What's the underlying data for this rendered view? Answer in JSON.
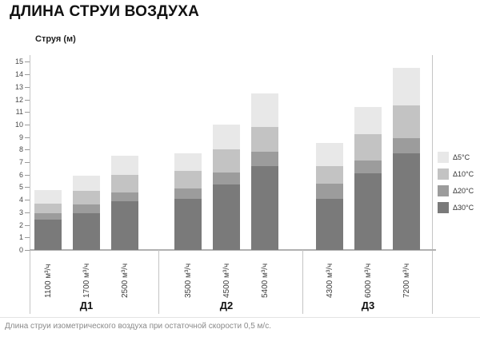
{
  "page": {
    "title": "ДЛИНА СТРУИ ВОЗДУХА",
    "footnote": "Длина струи изометрического воздуха при остаточной скорости 0,5 м/с."
  },
  "chart_data": {
    "type": "bar",
    "stacked": true,
    "title": "ДЛИНА СТРУИ ВОЗДУХА",
    "ylabel": "Струя (м)",
    "xlabel": "",
    "ylim": [
      0,
      15
    ],
    "ytick_step": 1,
    "yticks": [
      0,
      1,
      2,
      3,
      4,
      5,
      6,
      7,
      8,
      9,
      10,
      11,
      12,
      13,
      14,
      15
    ],
    "grid": false,
    "legend_position": "right",
    "note": "length_m values are cumulative jet length in meters for each temperature difference; stacks are drawn darkest (Δ30°C) at bottom",
    "legend": [
      {
        "name": "Δ5°C",
        "color": "#e8e8e8"
      },
      {
        "name": "Δ10°C",
        "color": "#c3c3c3"
      },
      {
        "name": "Δ20°C",
        "color": "#9c9c9c"
      },
      {
        "name": "Δ30°C",
        "color": "#7a7a7a"
      }
    ],
    "stack_order_bottom_to_top": [
      "Δ30°C",
      "Δ20°C",
      "Δ10°C",
      "Δ5°C"
    ],
    "groups": [
      {
        "label": "Д1",
        "bars": [
          {
            "category": "1100 м³/ч",
            "length_m": {
              "Δ30°C": 2.4,
              "Δ20°C": 2.9,
              "Δ10°C": 3.7,
              "Δ5°C": 4.8
            }
          },
          {
            "category": "1700 м³/ч",
            "length_m": {
              "Δ30°C": 2.9,
              "Δ20°C": 3.6,
              "Δ10°C": 4.7,
              "Δ5°C": 5.9
            }
          },
          {
            "category": "2500 м³/ч",
            "length_m": {
              "Δ30°C": 3.9,
              "Δ20°C": 4.6,
              "Δ10°C": 6.0,
              "Δ5°C": 7.5
            }
          }
        ]
      },
      {
        "label": "Д2",
        "bars": [
          {
            "category": "3500 м³/ч",
            "length_m": {
              "Δ30°C": 4.1,
              "Δ20°C": 4.9,
              "Δ10°C": 6.3,
              "Δ5°C": 7.7
            }
          },
          {
            "category": "4500 м³/ч",
            "length_m": {
              "Δ30°C": 5.2,
              "Δ20°C": 6.2,
              "Δ10°C": 8.0,
              "Δ5°C": 10.0
            }
          },
          {
            "category": "5400 м³/ч",
            "length_m": {
              "Δ30°C": 6.7,
              "Δ20°C": 7.8,
              "Δ10°C": 9.8,
              "Δ5°C": 12.5
            }
          }
        ]
      },
      {
        "label": "Д3",
        "bars": [
          {
            "category": "4300 м³/ч",
            "length_m": {
              "Δ30°C": 4.1,
              "Δ20°C": 5.3,
              "Δ10°C": 6.7,
              "Δ5°C": 8.5
            }
          },
          {
            "category": "6000 м³/ч",
            "length_m": {
              "Δ30°C": 6.1,
              "Δ20°C": 7.1,
              "Δ10°C": 9.2,
              "Δ5°C": 11.4
            }
          },
          {
            "category": "7200 м³/ч",
            "length_m": {
              "Δ30°C": 7.7,
              "Δ20°C": 8.9,
              "Δ10°C": 11.5,
              "Δ5°C": 14.5
            }
          }
        ]
      }
    ]
  }
}
